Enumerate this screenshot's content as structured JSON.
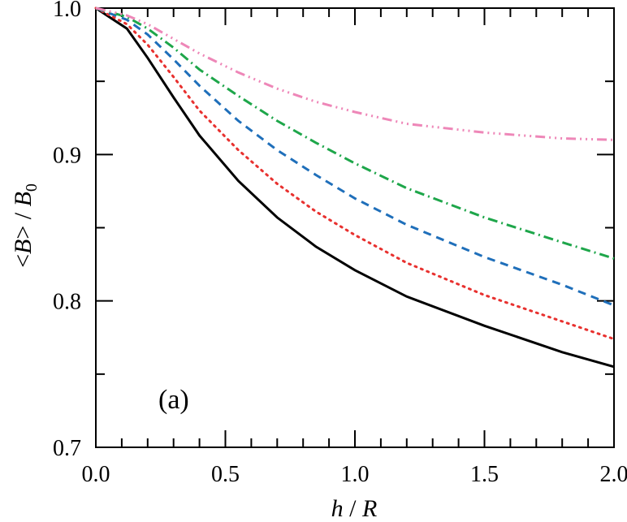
{
  "chart_data": {
    "type": "line",
    "title": "",
    "annotation": "(a)",
    "xlabel": {
      "var": "h",
      "sep": " / ",
      "unit": "R"
    },
    "ylabel": {
      "pre": "<",
      "var": "B",
      "post": "> / ",
      "var2": "B",
      "sub": "0"
    },
    "xlim": [
      0,
      2.0
    ],
    "ylim": [
      0.7,
      1.0
    ],
    "x_ticks": [
      0.0,
      0.5,
      1.0,
      1.5,
      2.0
    ],
    "x_tick_labels": [
      "0.0",
      "0.5",
      "1.0",
      "1.5",
      "2.0"
    ],
    "y_ticks": [
      0.7,
      0.8,
      0.9,
      1.0
    ],
    "y_tick_labels": [
      "0.7",
      "0.8",
      "0.9",
      "1.0"
    ],
    "x_minor_step": 0.1,
    "y_minor_step": 0.05,
    "grid": false,
    "legend": "none",
    "series": [
      {
        "color": "#000000",
        "dash": "solid",
        "x": [
          0.0,
          0.12,
          0.2,
          0.3,
          0.4,
          0.55,
          0.7,
          0.85,
          1.0,
          1.2,
          1.5,
          1.8,
          2.0
        ],
        "y": [
          1.0,
          0.986,
          0.966,
          0.939,
          0.913,
          0.882,
          0.857,
          0.837,
          0.821,
          0.803,
          0.783,
          0.765,
          0.755
        ]
      },
      {
        "color": "#e8312f",
        "dash": "dotted",
        "x": [
          0.0,
          0.12,
          0.2,
          0.3,
          0.4,
          0.55,
          0.7,
          0.85,
          1.0,
          1.2,
          1.5,
          1.8,
          2.0
        ],
        "y": [
          1.0,
          0.989,
          0.975,
          0.953,
          0.93,
          0.903,
          0.88,
          0.861,
          0.845,
          0.826,
          0.804,
          0.786,
          0.774
        ]
      },
      {
        "color": "#1f6fba",
        "dash": "dashed",
        "x": [
          0.0,
          0.12,
          0.2,
          0.3,
          0.4,
          0.55,
          0.7,
          0.85,
          1.0,
          1.2,
          1.5,
          1.8,
          2.0
        ],
        "y": [
          1.0,
          0.992,
          0.982,
          0.965,
          0.947,
          0.923,
          0.903,
          0.886,
          0.87,
          0.852,
          0.83,
          0.811,
          0.797
        ]
      },
      {
        "color": "#1ea64a",
        "dash": "dashdot",
        "x": [
          0.0,
          0.12,
          0.2,
          0.3,
          0.4,
          0.55,
          0.7,
          0.85,
          1.0,
          1.2,
          1.5,
          1.8,
          2.0
        ],
        "y": [
          1.0,
          0.994,
          0.986,
          0.973,
          0.958,
          0.94,
          0.923,
          0.908,
          0.894,
          0.877,
          0.857,
          0.84,
          0.829
        ]
      },
      {
        "color": "#ee87b8",
        "dash": "dashdotdotdot",
        "x": [
          0.0,
          0.12,
          0.2,
          0.3,
          0.4,
          0.55,
          0.7,
          0.85,
          1.0,
          1.2,
          1.5,
          1.8,
          2.0
        ],
        "y": [
          1.0,
          0.995,
          0.989,
          0.979,
          0.969,
          0.956,
          0.945,
          0.936,
          0.929,
          0.921,
          0.915,
          0.911,
          0.91
        ]
      }
    ]
  }
}
